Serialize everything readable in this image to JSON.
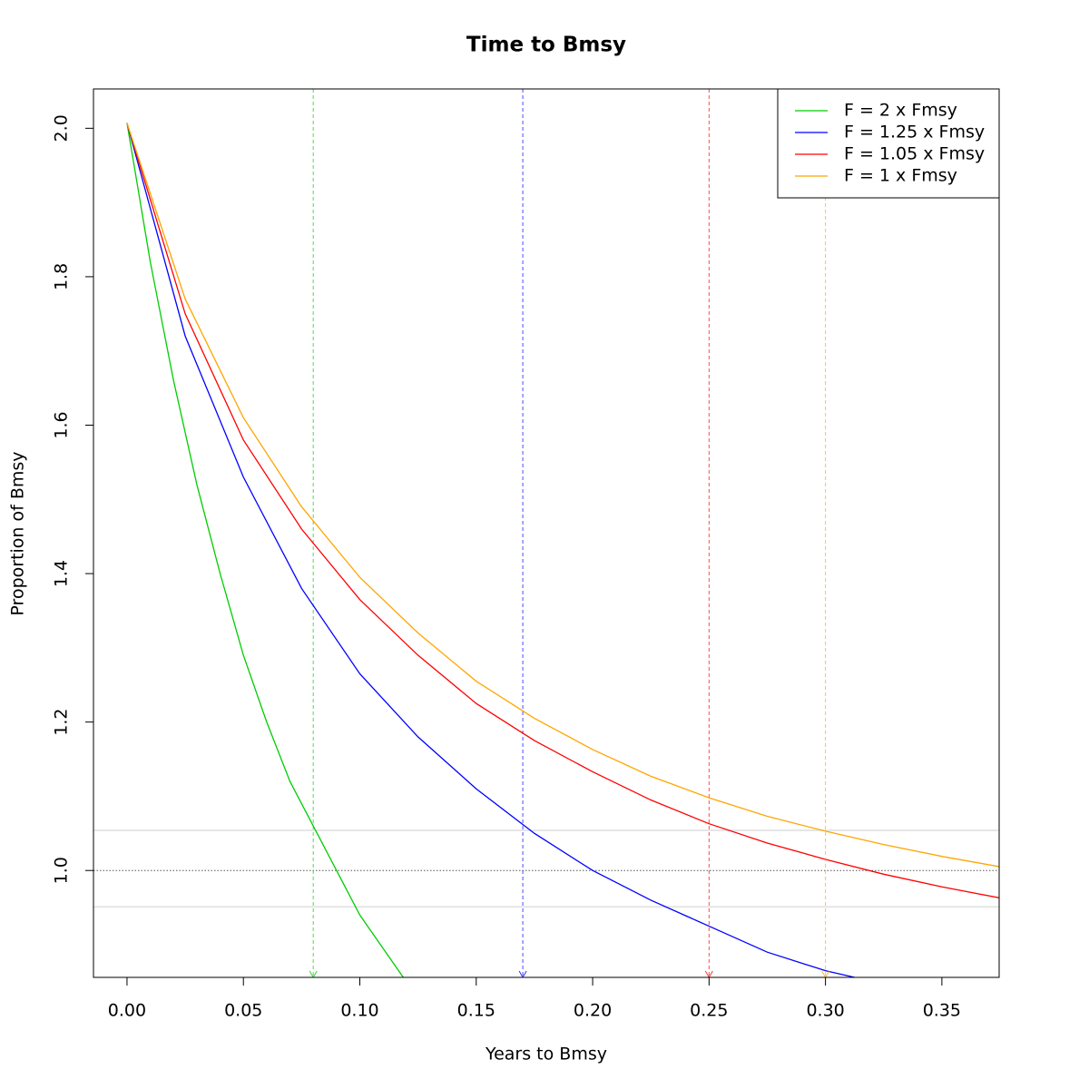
{
  "chart_data": {
    "type": "line",
    "title": "Time to Bmsy",
    "x_label": "Years to Bmsy",
    "y_label": "Proportion of Bmsy",
    "xlim": [
      -0.0144,
      0.3746
    ],
    "ylim": [
      0.856,
      2.053
    ],
    "xticks": [
      {
        "value": 0,
        "label": "0.00"
      },
      {
        "value": 0.05,
        "label": "0.05"
      },
      {
        "value": 0.1,
        "label": "0.10"
      },
      {
        "value": 0.15,
        "label": "0.15"
      },
      {
        "value": 0.2,
        "label": "0.20"
      },
      {
        "value": 0.25,
        "label": "0.25"
      },
      {
        "value": 0.3,
        "label": "0.30"
      },
      {
        "value": 0.35,
        "label": "0.35"
      }
    ],
    "yticks": [
      {
        "value": 1,
        "label": "1.0"
      },
      1.2,
      1.4,
      1.6,
      1.8,
      {
        "value": 2,
        "label": "2.0"
      }
    ],
    "reference_line": 1,
    "band_lines": [
      1.054,
      0.951
    ],
    "legend_position": "topright",
    "series": [
      {
        "name": "F = 2 x Fmsy",
        "color": "#00cd00",
        "time_to_bmsy": 0.08,
        "x": [
          0,
          0.01,
          0.02,
          0.03,
          0.04,
          0.05,
          0.06,
          0.07,
          0.08,
          0.09,
          0.1,
          0.11,
          0.12
        ],
        "values": [
          2.007,
          1.82,
          1.66,
          1.52,
          1.4,
          1.29,
          1.2,
          1.12,
          1.06,
          1.0,
          0.94,
          0.895,
          0.85
        ]
      },
      {
        "name": "F = 1.25 x Fmsy",
        "color": "#0000ff",
        "time_to_bmsy": 0.17,
        "x": [
          0,
          0.025,
          0.05,
          0.075,
          0.1,
          0.125,
          0.15,
          0.175,
          0.2,
          0.225,
          0.25,
          0.275,
          0.3,
          0.3125
        ],
        "values": [
          2.007,
          1.72,
          1.53,
          1.38,
          1.265,
          1.18,
          1.11,
          1.05,
          1.0,
          0.96,
          0.925,
          0.89,
          0.865,
          0.856
        ]
      },
      {
        "name": "F = 1.05 x Fmsy",
        "color": "#ff0000",
        "time_to_bmsy": 0.25,
        "x": [
          0,
          0.025,
          0.05,
          0.075,
          0.1,
          0.125,
          0.15,
          0.175,
          0.2,
          0.225,
          0.25,
          0.275,
          0.3,
          0.325,
          0.35,
          0.375
        ],
        "values": [
          2.007,
          1.75,
          1.58,
          1.46,
          1.365,
          1.29,
          1.225,
          1.175,
          1.133,
          1.095,
          1.063,
          1.037,
          1.015,
          0.995,
          0.978,
          0.963
        ]
      },
      {
        "name": "F = 1 x Fmsy",
        "color": "#ffa500",
        "time_to_bmsy": 0.3,
        "x": [
          0,
          0.025,
          0.05,
          0.075,
          0.1,
          0.125,
          0.15,
          0.175,
          0.2,
          0.225,
          0.25,
          0.275,
          0.3,
          0.325,
          0.35,
          0.375
        ],
        "values": [
          2.007,
          1.77,
          1.61,
          1.49,
          1.395,
          1.32,
          1.255,
          1.205,
          1.163,
          1.127,
          1.098,
          1.073,
          1.053,
          1.035,
          1.019,
          1.005
        ]
      }
    ]
  }
}
